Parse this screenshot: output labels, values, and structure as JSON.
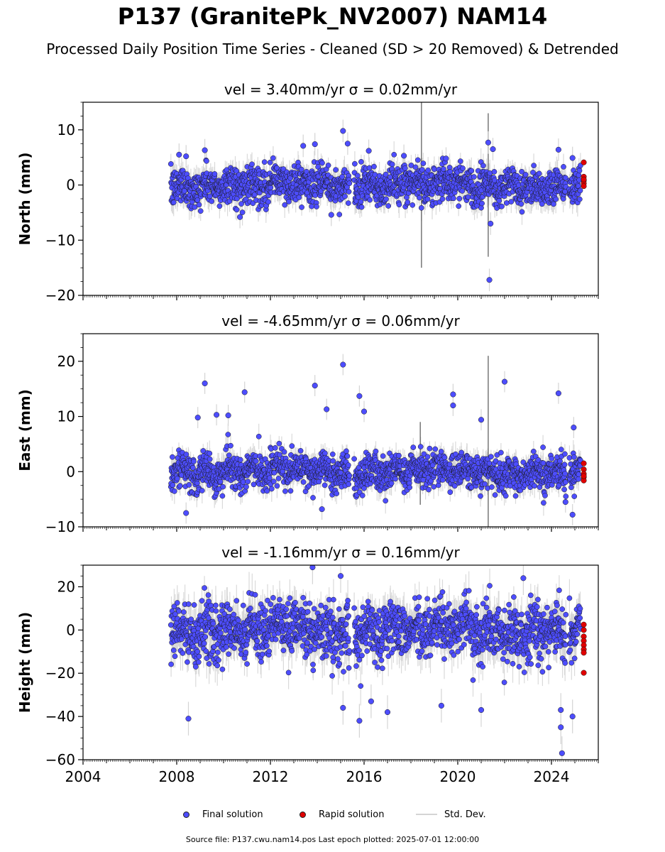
{
  "figure": {
    "title": "P137 (GranitePk_NV2007) NAM14",
    "subtitle": "Processed Daily Position Time Series - Cleaned (SD > 20 Removed) & Detrended",
    "footer": "Source file: P137.cwu.nam14.pos  Last epoch plotted: 2025-07-01 12:00:00"
  },
  "legend": {
    "final": "Final solution",
    "rapid": "Rapid solution",
    "std": "Std. Dev."
  },
  "colors": {
    "final": "#4d4dff",
    "rapid": "#e00000",
    "std": "#d4d4d4"
  },
  "chart_data": [
    {
      "type": "scatter",
      "title": "vel = 3.40mm/yr   σ = 0.02mm/yr",
      "ylabel": "North (mm)",
      "xlim": [
        2004,
        2026
      ],
      "ylim": [
        -20,
        15
      ],
      "yticks": [
        -20,
        -10,
        0,
        10
      ],
      "xticks": [
        2004,
        2008,
        2012,
        2016,
        2020,
        2024
      ],
      "show_xticklabels": false,
      "noise_sd": 1.7,
      "data_start": 2007.75,
      "data_end": 2025.3,
      "gaps": [
        [
          2015.38,
          2015.58
        ],
        [
          2024.62,
          2024.75
        ]
      ],
      "rapid_start": 2025.25,
      "outliers": [
        {
          "x": 2008.1,
          "y": 5.5
        },
        {
          "x": 2008.4,
          "y": 5.2
        },
        {
          "x": 2009.2,
          "y": 6.3
        },
        {
          "x": 2010.7,
          "y": -5.8
        },
        {
          "x": 2013.4,
          "y": 7.1
        },
        {
          "x": 2013.9,
          "y": 7.4
        },
        {
          "x": 2014.6,
          "y": -5.4
        },
        {
          "x": 2015.1,
          "y": 9.8
        },
        {
          "x": 2015.3,
          "y": 7.5
        },
        {
          "x": 2016.2,
          "y": 6.2
        },
        {
          "x": 2017.7,
          "y": 5.3
        },
        {
          "x": 2021.3,
          "y": 7.7
        },
        {
          "x": 2021.5,
          "y": 6.5
        },
        {
          "x": 2021.4,
          "y": -7.0
        },
        {
          "x": 2021.35,
          "y": -17.2
        },
        {
          "x": 2024.3,
          "y": 6.4
        },
        {
          "x": 2024.9,
          "y": 4.9
        },
        {
          "x": 2019.5,
          "y": 4.8
        }
      ],
      "rapid_points": [
        {
          "x": 2025.38,
          "y": 4.1
        },
        {
          "x": 2025.38,
          "y": 1.5
        },
        {
          "x": 2025.38,
          "y": 0.8
        },
        {
          "x": 2025.38,
          "y": 0.3
        },
        {
          "x": 2025.38,
          "y": -0.2
        },
        {
          "x": 2025.38,
          "y": 1.0
        }
      ],
      "spikes": [
        {
          "x": 2018.45,
          "y1": -15,
          "y2": 15
        },
        {
          "x": 2021.3,
          "y1": -13,
          "y2": 13
        }
      ]
    },
    {
      "type": "scatter",
      "title": "vel = -4.65mm/yr   σ = 0.06mm/yr",
      "ylabel": "East (mm)",
      "xlim": [
        2004,
        2026
      ],
      "ylim": [
        -10,
        25
      ],
      "yticks": [
        -10,
        0,
        10,
        20
      ],
      "xticks": [
        2004,
        2008,
        2012,
        2016,
        2020,
        2024
      ],
      "show_xticklabels": false,
      "noise_sd": 1.6,
      "data_start": 2007.75,
      "data_end": 2025.3,
      "gaps": [
        [
          2015.38,
          2015.58
        ],
        [
          2024.62,
          2024.75
        ]
      ],
      "rapid_start": 2025.25,
      "outliers": [
        {
          "x": 2009.2,
          "y": 16.0
        },
        {
          "x": 2010.9,
          "y": 14.4
        },
        {
          "x": 2013.9,
          "y": 15.6
        },
        {
          "x": 2015.1,
          "y": 19.4
        },
        {
          "x": 2015.8,
          "y": 13.7
        },
        {
          "x": 2019.8,
          "y": 14.0
        },
        {
          "x": 2019.8,
          "y": 12.0
        },
        {
          "x": 2022.0,
          "y": 16.3
        },
        {
          "x": 2024.3,
          "y": 14.2
        },
        {
          "x": 2008.9,
          "y": 9.8
        },
        {
          "x": 2009.7,
          "y": 10.3
        },
        {
          "x": 2010.2,
          "y": 10.2
        },
        {
          "x": 2008.4,
          "y": -7.5
        },
        {
          "x": 2014.2,
          "y": -6.8
        },
        {
          "x": 2024.9,
          "y": -7.8
        },
        {
          "x": 2024.6,
          "y": -5.5
        },
        {
          "x": 2024.95,
          "y": 8.0
        },
        {
          "x": 2014.4,
          "y": 11.3
        },
        {
          "x": 2016.0,
          "y": 10.9
        },
        {
          "x": 2021.0,
          "y": 9.4
        }
      ],
      "rapid_points": [
        {
          "x": 2025.38,
          "y": 1.5
        },
        {
          "x": 2025.38,
          "y": 0.4
        },
        {
          "x": 2025.38,
          "y": -0.4
        },
        {
          "x": 2025.38,
          "y": -1.0
        },
        {
          "x": 2025.38,
          "y": -1.6
        },
        {
          "x": 2025.38,
          "y": -0.8
        }
      ],
      "spikes": [
        {
          "x": 2018.4,
          "y1": -6,
          "y2": 9
        },
        {
          "x": 2021.3,
          "y1": -10,
          "y2": 21
        }
      ]
    },
    {
      "type": "scatter",
      "title": "vel = -1.16mm/yr   σ = 0.16mm/yr",
      "ylabel": "Height (mm)",
      "xlim": [
        2004,
        2026
      ],
      "ylim": [
        -60,
        30
      ],
      "yticks": [
        -60,
        -40,
        -20,
        0,
        20
      ],
      "xticks": [
        2004,
        2008,
        2012,
        2016,
        2020,
        2024
      ],
      "show_xticklabels": true,
      "noise_sd": 6.5,
      "data_start": 2007.75,
      "data_end": 2025.3,
      "gaps": [
        [
          2015.38,
          2015.58
        ],
        [
          2024.62,
          2024.75
        ]
      ],
      "rapid_start": 2025.25,
      "outliers": [
        {
          "x": 2013.8,
          "y": 29.0
        },
        {
          "x": 2015.0,
          "y": 25.0
        },
        {
          "x": 2022.8,
          "y": 24.0
        },
        {
          "x": 2008.5,
          "y": -41.0
        },
        {
          "x": 2015.8,
          "y": -42.0
        },
        {
          "x": 2024.9,
          "y": -40.0
        },
        {
          "x": 2024.4,
          "y": -45.0
        },
        {
          "x": 2024.45,
          "y": -57.0
        },
        {
          "x": 2015.1,
          "y": -36.0
        },
        {
          "x": 2017.0,
          "y": -38.0
        },
        {
          "x": 2019.3,
          "y": -35.0
        },
        {
          "x": 2021.0,
          "y": -37.0
        },
        {
          "x": 2024.4,
          "y": -37.0
        },
        {
          "x": 2016.3,
          "y": -33.0
        }
      ],
      "rapid_points": [
        {
          "x": 2025.38,
          "y": 2.5
        },
        {
          "x": 2025.38,
          "y": 0.0
        },
        {
          "x": 2025.38,
          "y": -3.0
        },
        {
          "x": 2025.38,
          "y": -5.0
        },
        {
          "x": 2025.38,
          "y": -7.0
        },
        {
          "x": 2025.38,
          "y": -9.0
        },
        {
          "x": 2025.38,
          "y": -10.5
        },
        {
          "x": 2025.38,
          "y": -19.8
        }
      ],
      "spikes": []
    }
  ]
}
